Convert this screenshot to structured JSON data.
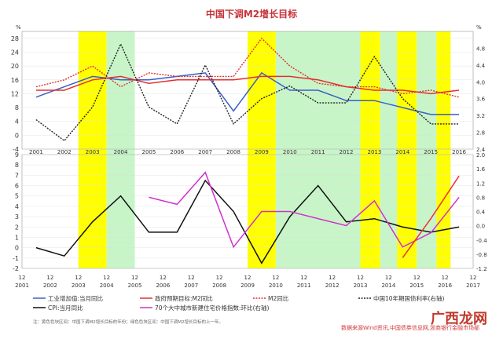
{
  "chart_data": [
    {
      "type": "line",
      "title": "中国下调M2增长目标",
      "x": [
        2001,
        2002,
        2003,
        2004,
        2005,
        2006,
        2007,
        2008,
        2009,
        2010,
        2011,
        2012,
        2013,
        2014,
        2015,
        2016
      ],
      "ylim": [
        -4,
        30
      ],
      "y_ticks": [
        -4,
        0,
        4,
        8,
        12,
        16,
        20,
        24,
        28
      ],
      "y2lim": [
        2.4,
        5.2
      ],
      "y2_ticks": [
        2.4,
        2.8,
        3.2,
        3.6,
        4.0,
        4.4,
        4.8
      ],
      "series": [
        {
          "name": "工业增加值:当月同比",
          "axis": "left",
          "color": "#3a5fc8",
          "dash": "solid",
          "values": [
            11,
            14,
            17,
            16,
            16,
            17,
            18,
            7,
            18,
            13,
            13,
            10,
            10,
            8,
            6,
            6
          ]
        },
        {
          "name": "政府预期目标:M2同比",
          "axis": "left",
          "color": "#e03030",
          "dash": "solid",
          "values": [
            13,
            13,
            16,
            17,
            15,
            16,
            16,
            16,
            17,
            17,
            16,
            14,
            13,
            13,
            12,
            13
          ]
        },
        {
          "name": "M2同比",
          "axis": "left",
          "color": "#e03030",
          "dash": "dot",
          "values": [
            14,
            16,
            20,
            14,
            18,
            17,
            17,
            17,
            28,
            20,
            15,
            14,
            14,
            12,
            13,
            11
          ]
        },
        {
          "name": "中国10年期国债利率(右轴)",
          "axis": "right",
          "color": "#222222",
          "dash": "dot",
          "values": [
            3.1,
            2.6,
            3.4,
            4.9,
            3.4,
            3.0,
            4.4,
            3.0,
            3.6,
            3.9,
            3.5,
            3.5,
            4.6,
            3.6,
            3.0,
            3.0
          ]
        }
      ]
    },
    {
      "type": "line",
      "x": [
        2001,
        2002,
        2003,
        2004,
        2005,
        2006,
        2007,
        2008,
        2009,
        2010,
        2011,
        2012,
        2013,
        2014,
        2015,
        2016
      ],
      "ylim": [
        -2,
        9
      ],
      "y_ticks": [
        -2,
        -1,
        0,
        1,
        2,
        3,
        4,
        5,
        6,
        7,
        8,
        9
      ],
      "y2lim": [
        -1.2,
        2.0
      ],
      "y2_ticks": [
        -1.2,
        -0.8,
        -0.4,
        0.0,
        0.4,
        0.8,
        1.2,
        1.6,
        2.0
      ],
      "series": [
        {
          "name": "CPI:当月同比",
          "axis": "left",
          "color": "#111111",
          "dash": "solid",
          "values": [
            0,
            -0.8,
            2.5,
            5.0,
            1.5,
            1.5,
            6.5,
            3.5,
            -1.5,
            3.0,
            6.0,
            2.5,
            2.8,
            2.0,
            1.5,
            2.0
          ]
        },
        {
          "name": "70个大中城市新建住宅价格指数:环比(右轴)",
          "axis": "right",
          "color": "#d030d0",
          "dash": "solid",
          "values": [
            null,
            null,
            null,
            null,
            0.8,
            0.6,
            1.5,
            -0.6,
            0.4,
            0.4,
            0.2,
            0.0,
            0.7,
            -0.6,
            -0.2,
            0.8
          ]
        },
        {
          "name": "政府预期目标:M2同比(高亮)",
          "axis": "right",
          "color": "#f03030",
          "dash": "solid",
          "values": [
            null,
            null,
            null,
            null,
            null,
            null,
            null,
            null,
            null,
            null,
            null,
            null,
            null,
            -0.9,
            0.2,
            1.4
          ]
        }
      ]
    }
  ],
  "x_axis_top_labels": [
    "2001",
    "2002",
    "2003",
    "2004",
    "2005",
    "2006",
    "2007",
    "2008",
    "2009",
    "2010",
    "2011",
    "2012",
    "2013",
    "2014",
    "2015",
    "2016"
  ],
  "x_axis_bottom_labels": [
    {
      "month": "12",
      "year": "2001"
    },
    {
      "month": "12",
      "year": "2002"
    },
    {
      "month": "12",
      "year": "2003"
    },
    {
      "month": "12",
      "year": "2004"
    },
    {
      "month": "12",
      "year": "2005"
    },
    {
      "month": "12",
      "year": "2006"
    },
    {
      "month": "12",
      "year": "2007"
    },
    {
      "month": "12",
      "year": "2008"
    },
    {
      "month": "12",
      "year": "2009"
    },
    {
      "month": "12",
      "year": "2010"
    },
    {
      "month": "12",
      "year": "2011"
    },
    {
      "month": "12",
      "year": "2012"
    },
    {
      "month": "12",
      "year": "2013"
    },
    {
      "month": "12",
      "year": "2014"
    },
    {
      "month": "12",
      "year": "2015"
    },
    {
      "month": "12",
      "year": "2016"
    },
    {
      "month": "12",
      "year": "2017"
    }
  ],
  "top_left_unit": "%",
  "top_right_unit": "%",
  "shading": [
    {
      "start": 2003.0,
      "end": 2004.0,
      "color": "#ffff00"
    },
    {
      "start": 2004.0,
      "end": 2005.0,
      "color": "#c8f5c8"
    },
    {
      "start": 2009.0,
      "end": 2010.0,
      "color": "#ffff00"
    },
    {
      "start": 2010.0,
      "end": 2013.0,
      "color": "#c8f5c8"
    },
    {
      "start": 2013.0,
      "end": 2013.7,
      "color": "#ffff00"
    },
    {
      "start": 2013.7,
      "end": 2014.3,
      "color": "#c8f5c8"
    },
    {
      "start": 2014.3,
      "end": 2015.0,
      "color": "#ffff00"
    },
    {
      "start": 2015.0,
      "end": 2015.7,
      "color": "#c8f5c8"
    },
    {
      "start": 2015.7,
      "end": 2016.2,
      "color": "#ffff00"
    }
  ],
  "legend": [
    {
      "label": "工业增加值:当月同比",
      "color": "#3a5fc8",
      "dash": "solid"
    },
    {
      "label": "政府预期目标:M2同比",
      "color": "#e03030",
      "dash": "solid"
    },
    {
      "label": "M2同比",
      "color": "#e03030",
      "dash": "dot"
    },
    {
      "label": "中国10年期国债利率(右轴)",
      "color": "#222222",
      "dash": "dot"
    },
    {
      "label": "CPI:当月同比",
      "color": "#111111",
      "dash": "solid"
    },
    {
      "label": "70个大中城市新建住宅价格指数:环比(右轴)",
      "color": "#d030d0",
      "dash": "solid"
    }
  ],
  "note": "注：黄色色块区间：中国下调M2增长目标的年份；绿色色块区间：中国下调M2增长目标的上一年。",
  "source": "数据来源Wind资讯,中国债券信息网,浙商银行金融市场部",
  "watermark": "广西龙网"
}
